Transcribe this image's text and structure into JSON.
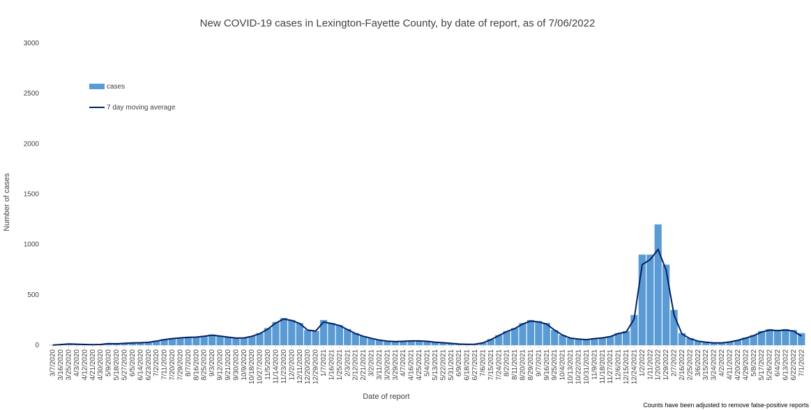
{
  "chart_data": {
    "type": "bar",
    "title": "New COVID-19 cases in Lexington-Fayette County, by date of report, as of 7/06/2022",
    "x_label": "Date of report",
    "y_label": "Number of cases",
    "footnote": "Counts have been adjusted to remove false-positive reports",
    "legend": "top-left",
    "categories": [
      "3/7/2020",
      "3/16/2020",
      "3/25/2020",
      "4/3/2020",
      "4/12/2020",
      "4/21/2020",
      "4/30/2020",
      "5/9/2020",
      "5/18/2020",
      "5/27/2020",
      "6/5/2020",
      "6/14/2020",
      "6/23/2020",
      "7/2/2020",
      "7/11/2020",
      "7/20/2020",
      "7/29/2020",
      "8/7/2020",
      "8/16/2020",
      "8/25/2020",
      "9/3/2020",
      "9/12/2020",
      "9/21/2020",
      "9/30/2020",
      "10/9/2020",
      "10/18/2020",
      "10/27/2020",
      "11/5/2020",
      "11/14/2020",
      "11/23/2020",
      "12/2/2020",
      "12/11/2020",
      "12/20/2020",
      "12/29/2020",
      "1/7/2021",
      "1/16/2021",
      "1/25/2021",
      "2/3/2021",
      "2/12/2021",
      "2/21/2021",
      "3/2/2021",
      "3/11/2021",
      "3/20/2021",
      "3/29/2021",
      "4/7/2021",
      "4/16/2021",
      "4/25/2021",
      "5/4/2021",
      "5/13/2021",
      "5/22/2021",
      "5/31/2021",
      "6/9/2021",
      "6/18/2021",
      "6/27/2021",
      "7/6/2021",
      "7/15/2021",
      "7/24/2021",
      "8/2/2021",
      "8/11/2021",
      "8/20/2021",
      "8/29/2021",
      "9/7/2021",
      "9/16/2021",
      "9/25/2021",
      "10/4/2021",
      "10/13/2021",
      "10/22/2021",
      "10/31/2021",
      "11/9/2021",
      "11/18/2021",
      "11/27/2021",
      "12/6/2021",
      "12/15/2021",
      "12/24/2021",
      "1/2/2022",
      "1/11/2022",
      "1/20/2022",
      "1/29/2022",
      "2/7/2022",
      "2/16/2022",
      "2/25/2022",
      "3/6/2022",
      "3/15/2022",
      "3/24/2022",
      "4/2/2022",
      "4/11/2022",
      "4/20/2022",
      "4/29/2022",
      "5/8/2022",
      "5/17/2022",
      "5/26/2022",
      "6/4/2022",
      "6/13/2022",
      "6/22/2022",
      "7/1/2022"
    ],
    "series": [
      {
        "name": "cases",
        "color": "#5b9bd5",
        "values": [
          2,
          8,
          15,
          12,
          8,
          6,
          8,
          20,
          15,
          20,
          25,
          25,
          30,
          45,
          60,
          70,
          75,
          80,
          80,
          90,
          105,
          90,
          80,
          70,
          75,
          90,
          120,
          170,
          230,
          270,
          250,
          220,
          150,
          140,
          250,
          220,
          200,
          160,
          120,
          90,
          70,
          50,
          40,
          35,
          40,
          45,
          45,
          40,
          30,
          25,
          20,
          12,
          10,
          12,
          25,
          60,
          100,
          140,
          170,
          220,
          250,
          240,
          220,
          150,
          100,
          70,
          60,
          55,
          70,
          75,
          90,
          120,
          140,
          300,
          900,
          900,
          1200,
          800,
          350,
          120,
          70,
          40,
          30,
          25,
          25,
          35,
          50,
          75,
          100,
          140,
          160,
          150,
          160,
          150,
          120
        ]
      },
      {
        "name": "7 day moving average",
        "color": "#002060",
        "values": [
          1,
          6,
          12,
          10,
          7,
          5,
          7,
          15,
          14,
          18,
          22,
          24,
          28,
          40,
          55,
          65,
          72,
          78,
          80,
          88,
          100,
          90,
          80,
          70,
          72,
          88,
          115,
          160,
          220,
          260,
          245,
          215,
          150,
          140,
          230,
          215,
          195,
          155,
          115,
          88,
          68,
          50,
          40,
          35,
          38,
          42,
          42,
          38,
          30,
          24,
          18,
          11,
          9,
          10,
          22,
          55,
          95,
          135,
          165,
          210,
          240,
          230,
          210,
          150,
          100,
          70,
          60,
          55,
          65,
          72,
          85,
          115,
          130,
          260,
          800,
          850,
          950,
          750,
          300,
          110,
          65,
          40,
          30,
          22,
          22,
          32,
          48,
          70,
          95,
          130,
          150,
          145,
          150,
          140,
          90
        ]
      }
    ],
    "ylim": [
      0,
      3000
    ],
    "yticks": [
      0,
      500,
      1000,
      1500,
      2000,
      2500,
      3000
    ]
  }
}
